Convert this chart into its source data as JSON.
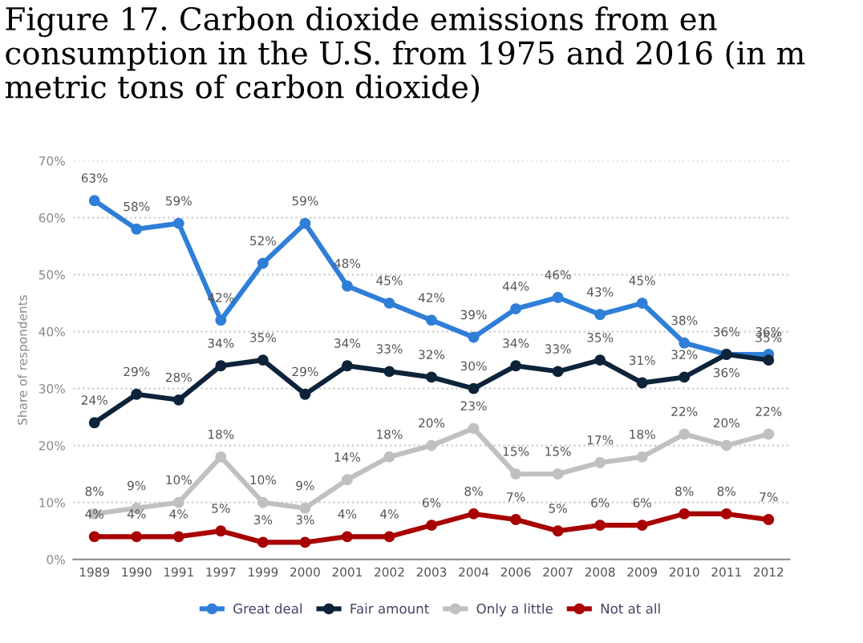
{
  "chart_data": {
    "type": "line",
    "title": "Figure 17. Carbon dioxide emissions from en\nconsumption in the U.S. from 1975 and 2016 (in m\nmetric tons of carbon dioxide)",
    "ylabel": "Share of respondents",
    "categories": [
      "1989",
      "1990",
      "1991",
      "1997",
      "1999",
      "2000",
      "2001",
      "2002",
      "2003",
      "2004",
      "2006",
      "2007",
      "2008",
      "2009",
      "2010",
      "2011",
      "2012"
    ],
    "series": [
      {
        "name": "Great deal",
        "color": "#2f7ed8",
        "values": [
          63,
          58,
          59,
          42,
          52,
          59,
          48,
          45,
          42,
          39,
          44,
          46,
          43,
          45,
          38,
          36,
          36
        ],
        "value_labels": [
          "63%",
          "58%",
          "59%",
          "42%",
          "52%",
          "59%",
          "48%",
          "45%",
          "42%",
          "39%",
          "44%",
          "46%",
          "43%",
          "45%",
          "38%",
          "36%",
          "36%"
        ]
      },
      {
        "name": "Fair amount",
        "color": "#0d233a",
        "values": [
          24,
          29,
          28,
          34,
          35,
          29,
          34,
          33,
          32,
          30,
          34,
          33,
          35,
          31,
          32,
          36,
          35
        ],
        "value_labels": [
          "24%",
          "29%",
          "28%",
          "34%",
          "35%",
          "29%",
          "34%",
          "33%",
          "32%",
          "30%",
          "34%",
          "33%",
          "35%",
          "31%",
          "32%",
          "36%",
          "35%"
        ]
      },
      {
        "name": "Only a little",
        "color": "#c0c0c0",
        "values": [
          8,
          9,
          10,
          18,
          10,
          9,
          14,
          18,
          20,
          23,
          15,
          15,
          17,
          18,
          22,
          20,
          22
        ],
        "value_labels": [
          "8%",
          "9%",
          "10%",
          "18%",
          "10%",
          "9%",
          "14%",
          "18%",
          "20%",
          "23%",
          "15%",
          "15%",
          "17%",
          "18%",
          "22%",
          "20%",
          "22%"
        ]
      },
      {
        "name": "Not at all",
        "color": "#a80000",
        "values": [
          4,
          4,
          4,
          5,
          3,
          3,
          4,
          4,
          6,
          8,
          7,
          5,
          6,
          6,
          8,
          8,
          7
        ],
        "value_labels": [
          "4%",
          "4%",
          "4%",
          "5%",
          "3%",
          "3%",
          "4%",
          "4%",
          "6%",
          "8%",
          "7%",
          "5%",
          "6%",
          "6%",
          "8%",
          "8%",
          "7%"
        ]
      }
    ],
    "ylim": [
      0,
      70
    ],
    "yticks": [
      {
        "value": 0,
        "label": "0%"
      },
      {
        "value": 10,
        "label": "10%"
      },
      {
        "value": 20,
        "label": "20%"
      },
      {
        "value": 30,
        "label": "30%"
      },
      {
        "value": 40,
        "label": "40%"
      },
      {
        "value": 50,
        "label": "50%"
      },
      {
        "value": 60,
        "label": "60%"
      },
      {
        "value": 70,
        "label": "70%"
      }
    ],
    "grid": "y",
    "legend": "bottom",
    "marker": "circle",
    "line_style": "solid"
  }
}
